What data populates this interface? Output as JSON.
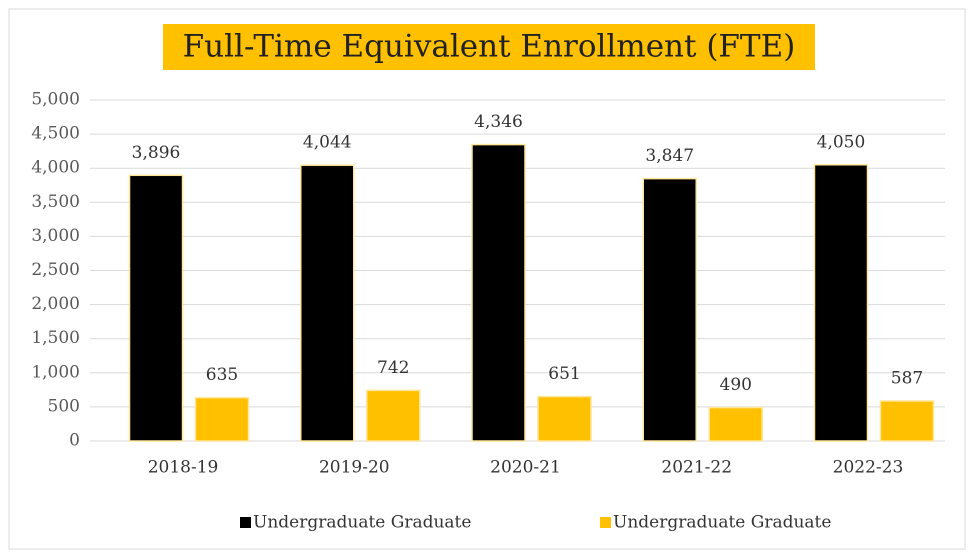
{
  "chart_data": {
    "type": "bar",
    "title": "Full-Time Equivalent Enrollment (FTE)",
    "categories": [
      "2018-19",
      "2019-20",
      "2020-21",
      "2021-22",
      "2022-23"
    ],
    "series": [
      {
        "name": "Undergraduate Graduate",
        "color": "#000000",
        "values": [
          3896,
          4044,
          4346,
          3847,
          4050
        ],
        "value_labels": [
          "3,896",
          "4,044",
          "4,346",
          "3,847",
          "4,050"
        ]
      },
      {
        "name": "Undergraduate Graduate",
        "color": "#ffc000",
        "values": [
          635,
          742,
          651,
          490,
          587
        ]
      }
    ],
    "ylim": [
      0,
      5000
    ],
    "yticks": [
      0,
      500,
      {
        "value": 1000,
        "label": "1,000"
      },
      {
        "value": 1500,
        "label": "1,500"
      },
      {
        "value": 2000,
        "label": "2,000"
      },
      {
        "value": 2500,
        "label": "2,500"
      },
      {
        "value": 3000,
        "label": "3,000"
      },
      {
        "value": 3500,
        "label": "3,500"
      },
      {
        "value": 4000,
        "label": "4,000"
      },
      {
        "value": 4500,
        "label": "4,500"
      },
      {
        "value": 5000,
        "label": "5,000"
      }
    ],
    "grid": true,
    "legend": "bottom"
  }
}
